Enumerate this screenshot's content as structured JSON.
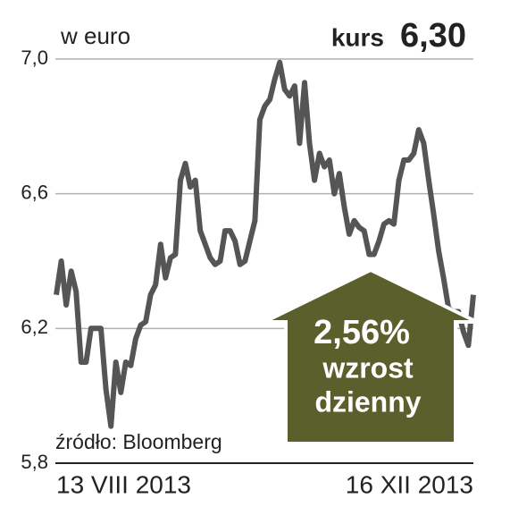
{
  "chart_data": {
    "type": "line",
    "unit_label": "w euro",
    "headline_label": "kurs",
    "headline_value": "6,30",
    "source": "źródło: Bloomberg",
    "badge": {
      "value": "2,56%",
      "line1": "wzrost",
      "line2": "dzienny"
    },
    "categories": [
      "13 VIII 2013",
      null,
      null,
      null,
      null,
      null,
      null,
      null,
      null,
      null,
      null,
      null,
      null,
      null,
      null,
      null,
      null,
      null,
      null,
      null,
      null,
      null,
      null,
      null,
      null,
      null,
      null,
      null,
      null,
      null,
      null,
      null,
      null,
      null,
      null,
      null,
      null,
      null,
      null,
      null,
      null,
      null,
      null,
      null,
      null,
      null,
      null,
      null,
      null,
      null,
      null,
      null,
      null,
      null,
      null,
      null,
      null,
      null,
      null,
      null,
      null,
      null,
      null,
      null,
      null,
      null,
      null,
      null,
      null,
      null,
      null,
      null,
      null,
      null,
      null,
      null,
      null,
      null,
      null,
      null,
      null,
      null,
      null,
      null,
      "16 XII 2013"
    ],
    "series": [
      {
        "name": "kurs",
        "color": "#555555",
        "values": [
          6.3,
          6.4,
          6.27,
          6.37,
          6.31,
          6.1,
          6.1,
          6.2,
          6.2,
          6.2,
          6.02,
          5.91,
          6.1,
          6.01,
          6.1,
          6.09,
          6.17,
          6.21,
          6.22,
          6.3,
          6.33,
          6.45,
          6.35,
          6.41,
          6.42,
          6.64,
          6.69,
          6.62,
          6.64,
          6.49,
          6.45,
          6.41,
          6.39,
          6.4,
          6.49,
          6.49,
          6.46,
          6.39,
          6.4,
          6.46,
          6.52,
          6.82,
          6.86,
          6.88,
          6.94,
          6.99,
          6.91,
          6.89,
          6.92,
          6.75,
          6.93,
          6.75,
          6.64,
          6.72,
          6.68,
          6.7,
          6.6,
          6.66,
          6.56,
          6.48,
          6.52,
          6.5,
          6.49,
          6.42,
          6.42,
          6.46,
          6.51,
          6.52,
          6.51,
          6.64,
          6.7,
          6.7,
          6.72,
          6.79,
          6.75,
          6.64,
          6.54,
          6.43,
          6.35,
          6.26,
          6.25,
          6.25,
          6.19,
          6.15,
          6.3
        ]
      }
    ],
    "ylim": [
      5.8,
      7.0
    ],
    "yticks": [
      {
        "value": 5.8,
        "label": "5,8"
      },
      {
        "value": 6.2,
        "label": "6,2"
      },
      {
        "value": 6.6,
        "label": "6,6"
      },
      {
        "value": 7.0,
        "label": "7,0"
      }
    ],
    "grid": true,
    "badge_color": "#5b5f2c"
  }
}
